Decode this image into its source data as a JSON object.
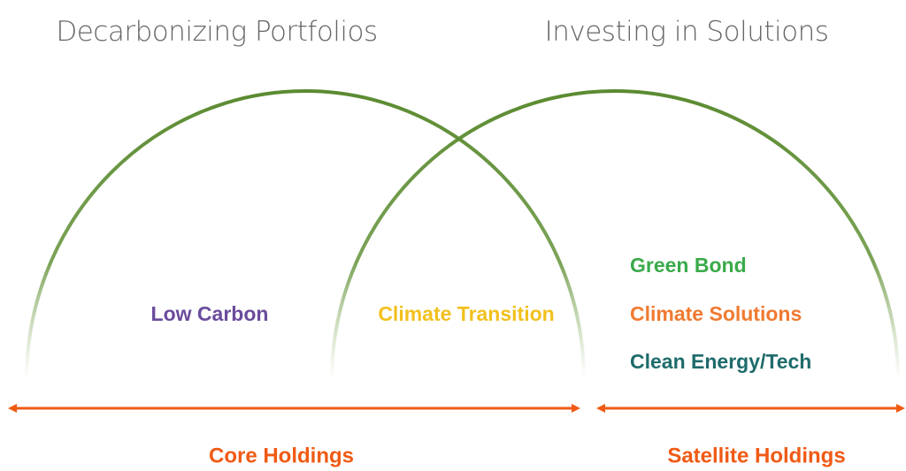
{
  "headings": {
    "left": "Decarbonizing Portfolios",
    "right": "Investing in Solutions"
  },
  "regions": {
    "left": "Low Carbon",
    "overlap": "Climate Transition",
    "right": [
      "Green Bond",
      "Climate Solutions",
      "Clean Energy/Tech"
    ]
  },
  "ranges": {
    "core": "Core Holdings",
    "satellite": "Satellite Holdings"
  }
}
